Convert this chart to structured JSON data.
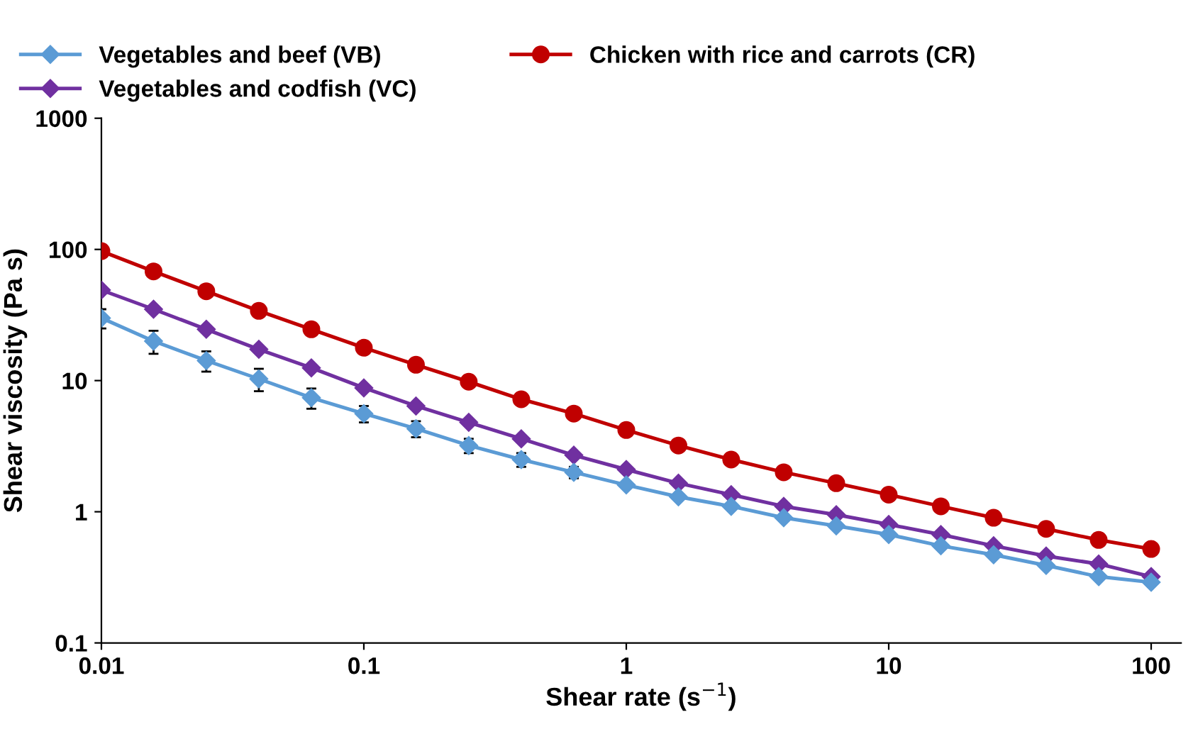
{
  "chart_data": {
    "type": "line",
    "xlabel": "Shear rate (s$^{−1}$)",
    "ylabel": "Shear viscosity (Pa s)",
    "log": "xy",
    "xlim": [
      0.01,
      130
    ],
    "ylim": [
      0.1,
      1000
    ],
    "xticks": [
      0.01,
      0.1,
      1,
      10,
      100
    ],
    "yticks": [
      0.1,
      1,
      10,
      100,
      1000
    ],
    "legend": "top",
    "grid": false,
    "x": [
      0.01,
      0.0158,
      0.0251,
      0.0398,
      0.0631,
      0.1,
      0.158,
      0.251,
      0.398,
      0.631,
      1,
      1.58,
      2.51,
      3.98,
      6.31,
      10,
      15.8,
      25.1,
      39.8,
      63.1,
      100
    ],
    "series": [
      {
        "name": "Vegetables and beef (VB)",
        "color": "#5b9bd5",
        "marker": "diamond",
        "values": [
          30,
          20,
          14.2,
          10.3,
          7.4,
          5.6,
          4.3,
          3.2,
          2.5,
          2.0,
          1.6,
          1.3,
          1.1,
          0.9,
          0.78,
          0.67,
          0.55,
          0.47,
          0.39,
          0.32,
          0.29
        ],
        "errors": [
          5,
          4,
          2.5,
          2,
          1.3,
          0.8,
          0.6,
          0.4,
          0.3,
          0.2,
          null,
          null,
          null,
          null,
          null,
          null,
          null,
          null,
          null,
          null,
          null
        ]
      },
      {
        "name": "Vegetables and codfish (VC)",
        "color": "#7030a0",
        "marker": "diamond",
        "values": [
          49,
          35,
          24.6,
          17.3,
          12.5,
          8.8,
          6.4,
          4.8,
          3.6,
          2.7,
          2.1,
          1.65,
          1.35,
          1.1,
          0.95,
          0.8,
          0.67,
          0.55,
          0.46,
          0.4,
          0.32
        ]
      },
      {
        "name": "Chicken with rice and carrots (CR)",
        "color": "#c00000",
        "marker": "circle",
        "values": [
          97,
          68,
          48,
          34,
          24.6,
          17.8,
          13.2,
          9.8,
          7.2,
          5.6,
          4.2,
          3.2,
          2.5,
          2.0,
          1.65,
          1.35,
          1.1,
          0.9,
          0.74,
          0.61,
          0.52
        ]
      }
    ]
  }
}
